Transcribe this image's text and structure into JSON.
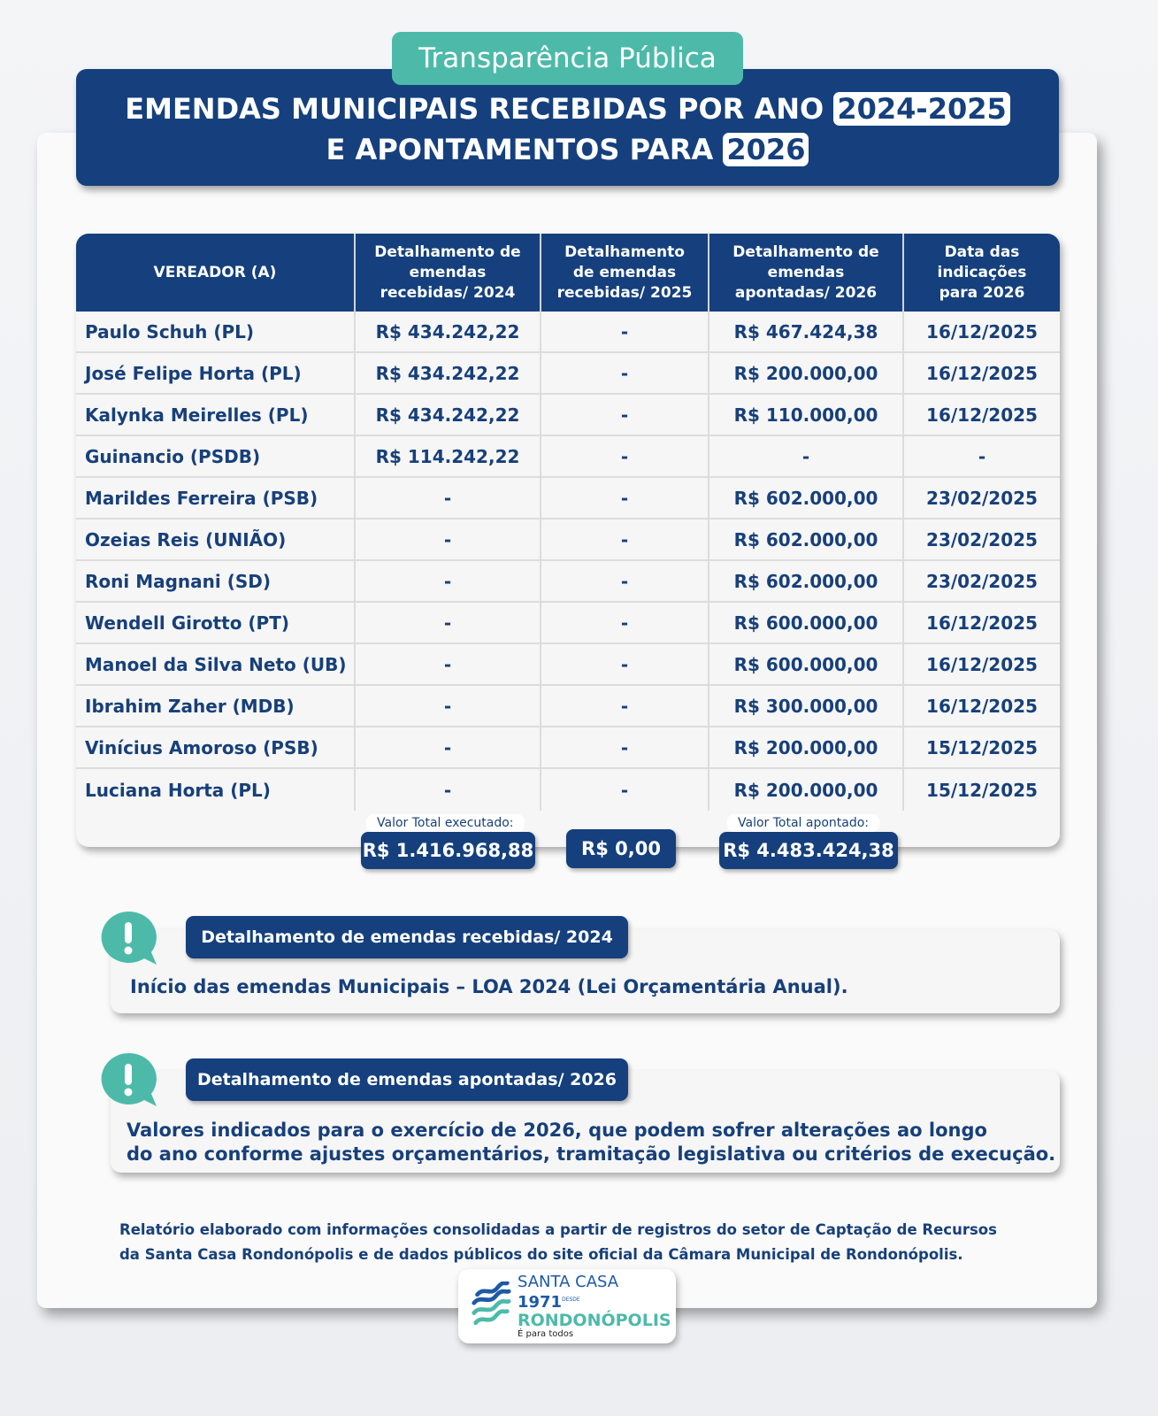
{
  "header": {
    "badge": "Transparência Pública",
    "title_line1": "EMENDAS MUNICIPAIS RECEBIDAS POR ANO",
    "title_year1": "2024-2025",
    "title_line2": "E APONTAMENTOS PARA",
    "title_year2": "2026"
  },
  "table": {
    "columns": [
      "VEREADOR (A)",
      "Detalhamento de emendas recebidas/ 2024",
      "Detalhamento de emendas recebidas/ 2025",
      "Detalhamento de emendas apontadas/ 2026",
      "Data das indicações para 2026"
    ],
    "rows": [
      [
        "Paulo Schuh (PL)",
        "R$ 434.242,22",
        "-",
        "R$ 467.424,38",
        "16/12/2025"
      ],
      [
        "José Felipe Horta (PL)",
        "R$ 434.242,22",
        "-",
        "R$ 200.000,00",
        "16/12/2025"
      ],
      [
        "Kalynka Meirelles (PL)",
        "R$ 434.242,22",
        "-",
        "R$ 110.000,00",
        "16/12/2025"
      ],
      [
        "Guinancio (PSDB)",
        "R$ 114.242,22",
        "-",
        "-",
        "-"
      ],
      [
        "Marildes Ferreira (PSB)",
        "-",
        "-",
        "R$ 602.000,00",
        "23/02/2025"
      ],
      [
        "Ozeias Reis (UNIÃO)",
        "-",
        "-",
        "R$ 602.000,00",
        "23/02/2025"
      ],
      [
        "Roni Magnani (SD)",
        "-",
        "-",
        "R$ 602.000,00",
        "23/02/2025"
      ],
      [
        "Wendell Girotto (PT)",
        "-",
        "-",
        "R$ 600.000,00",
        "16/12/2025"
      ],
      [
        "Manoel da Silva Neto (UB)",
        "-",
        "-",
        "R$ 600.000,00",
        "16/12/2025"
      ],
      [
        "Ibrahim Zaher (MDB)",
        "-",
        "-",
        "R$ 300.000,00",
        "16/12/2025"
      ],
      [
        "Vinícius Amoroso (PSB)",
        "-",
        "-",
        "R$ 200.000,00",
        "15/12/2025"
      ],
      [
        "Luciana Horta (PL)",
        "-",
        "-",
        "R$ 200.000,00",
        "15/12/2025"
      ]
    ],
    "totals": {
      "executed_label": "Valor Total executado:",
      "executed": "R$ 1.416.968,88",
      "received_2025": "R$ 0,00",
      "pointed_label": "Valor Total apontado:",
      "pointed": "R$ 4.483.424,38"
    }
  },
  "notes": [
    {
      "title": "Detalhamento de emendas recebidas/ 2024",
      "text": "Início das emendas Municipais – LOA 2024 (Lei Orçamentária Anual)."
    },
    {
      "title": "Detalhamento de emendas apontadas/ 2026",
      "text1": "Valores indicados para o exercício de 2026, que podem sofrer alterações ao longo",
      "text2": "do ano conforme ajustes orçamentários, tramitação legislativa ou critérios de execução."
    }
  ],
  "footer": {
    "line1": "Relatório elaborado com informações consolidadas a partir de registros do setor de Captação de Recursos",
    "line2": "da Santa Casa Rondonópolis e de dados públicos do site oficial da Câmara Municipal de Rondonópolis."
  },
  "logo": {
    "name1": "SANTA CASA",
    "since": "DESDE",
    "year": "1971",
    "name2": "RONDONÓPOLIS",
    "tagline": "É para todos"
  },
  "colors": {
    "navy": "#15407d",
    "teal": "#4dbaa9"
  }
}
